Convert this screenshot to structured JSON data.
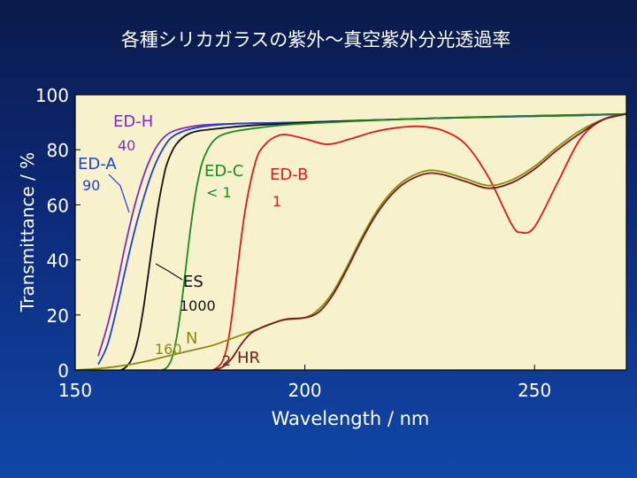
{
  "colors": {
    "plot_bg": "#f7f2cc",
    "frame": "#000000",
    "text": "#ffffff",
    "ED-H": "#7a2fc0",
    "ED-A": "#1f3fd6",
    "ES": "#111111",
    "ED-C": "#1e8a1e",
    "ED-B": "#e01a1a",
    "N": "#8a8a10",
    "HR": "#7a1a1a"
  },
  "chart_data": {
    "type": "line",
    "title": "各種シリカガラスの紫外～真空紫外分光透過率",
    "xlabel": "Wavelength / nm",
    "ylabel": "Transmittance / %",
    "xlim": [
      150,
      270
    ],
    "ylim": [
      0,
      100
    ],
    "xticks": [
      150,
      200,
      250
    ],
    "yticks": [
      0,
      20,
      40,
      60,
      80,
      100
    ],
    "grid": false,
    "series": [
      {
        "name": "ED-H",
        "note": "40",
        "x": [
          155,
          157,
          159,
          161,
          163,
          165,
          167,
          169,
          171,
          174,
          178,
          185,
          200,
          230,
          260,
          270
        ],
        "y": [
          5,
          16,
          30,
          46,
          60,
          71,
          79,
          84,
          86.5,
          88,
          89,
          89.5,
          90,
          91.5,
          92.5,
          93
        ]
      },
      {
        "name": "ED-A",
        "note": "90",
        "x": [
          155,
          157,
          159,
          161,
          163,
          165,
          167,
          169,
          171,
          174,
          178,
          185,
          200,
          230,
          260,
          270
        ],
        "y": [
          2,
          9,
          22,
          37,
          51,
          63,
          73,
          80,
          84.5,
          87,
          88.5,
          89.5,
          90,
          91.5,
          92.5,
          93
        ]
      },
      {
        "name": "ES",
        "note": "1000",
        "x": [
          160,
          161,
          162,
          163,
          164,
          165,
          166,
          167,
          168,
          169,
          170,
          172,
          175,
          180,
          190,
          210,
          240,
          270
        ],
        "y": [
          0,
          1,
          3,
          7,
          14,
          24,
          36,
          48,
          59,
          68,
          75,
          82,
          86,
          87.5,
          89,
          90.5,
          92,
          93
        ]
      },
      {
        "name": "ED-C",
        "note": "< 1",
        "x": [
          169,
          170,
          171,
          172,
          173,
          174,
          175,
          176,
          177,
          178,
          180,
          183,
          190,
          200,
          230,
          270
        ],
        "y": [
          0,
          1,
          4,
          11,
          22,
          36,
          50,
          62,
          71,
          77,
          83,
          86,
          88,
          89.5,
          91.5,
          93
        ]
      },
      {
        "name": "ED-B",
        "note": "1",
        "x": [
          180,
          181,
          182,
          183,
          184,
          185,
          186,
          187,
          188,
          189,
          190,
          192,
          194,
          196,
          200,
          205,
          210,
          215,
          220,
          225,
          230,
          235,
          240,
          245,
          247,
          250,
          255,
          260,
          265,
          270
        ],
        "y": [
          0,
          1,
          3,
          8,
          18,
          32,
          46,
          58,
          67,
          74,
          79,
          83,
          85,
          85.5,
          84,
          82,
          84,
          86.5,
          88,
          88.5,
          87,
          82,
          70,
          53,
          50,
          52,
          68,
          84,
          91,
          93
        ]
      },
      {
        "name": "N",
        "note": "160",
        "x": [
          150,
          155,
          160,
          165,
          170,
          175,
          180,
          185,
          190,
          195,
          200,
          203,
          206,
          209,
          212,
          215,
          218,
          221,
          224,
          227,
          230,
          235,
          240,
          245,
          250,
          255,
          260,
          265,
          270
        ],
        "y": [
          0,
          0.5,
          1.5,
          3,
          5,
          7,
          9,
          12,
          15,
          18,
          19,
          22,
          28,
          37,
          47,
          56,
          63,
          68,
          71,
          72.5,
          72,
          69.5,
          67,
          69,
          74,
          81,
          87,
          91,
          93
        ]
      },
      {
        "name": "HR",
        "note": "2",
        "x": [
          180,
          182,
          184,
          186,
          188,
          190,
          193,
          196,
          200,
          203,
          206,
          209,
          212,
          215,
          218,
          221,
          224,
          227,
          230,
          235,
          240,
          245,
          250,
          255,
          260,
          265,
          270
        ],
        "y": [
          0,
          1,
          4,
          9,
          13,
          15,
          17,
          18.5,
          19,
          21,
          27,
          36,
          46,
          55,
          62,
          67,
          70,
          71.5,
          71,
          68.5,
          66,
          68,
          73,
          80,
          86,
          91,
          93
        ]
      }
    ],
    "annotations": [
      {
        "text": "ED-H",
        "series": "ED-H"
      },
      {
        "text": "40",
        "series": "ED-H"
      },
      {
        "text": "ED-A",
        "series": "ED-A"
      },
      {
        "text": "90",
        "series": "ED-A"
      },
      {
        "text": "ES",
        "series": "ES"
      },
      {
        "text": "1000",
        "series": "ES"
      },
      {
        "text": "ED-C",
        "series": "ED-C"
      },
      {
        "text": "< 1",
        "series": "ED-C"
      },
      {
        "text": "ED-B",
        "series": "ED-B"
      },
      {
        "text": "1",
        "series": "ED-B"
      },
      {
        "text": "N",
        "series": "N"
      },
      {
        "text": "160",
        "series": "N"
      },
      {
        "text": "HR",
        "series": "HR"
      },
      {
        "text": "2",
        "series": "HR"
      }
    ]
  }
}
